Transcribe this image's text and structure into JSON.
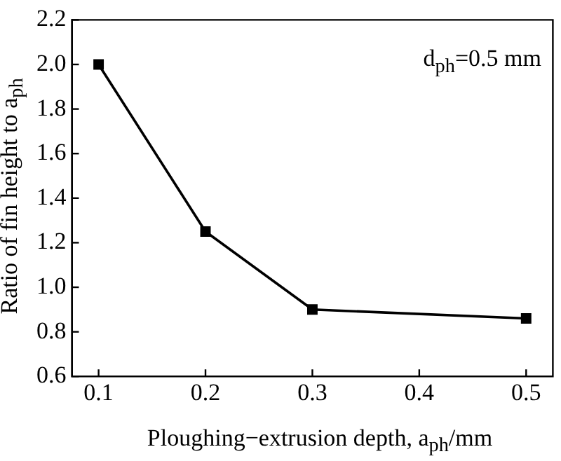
{
  "chart_data": {
    "type": "line",
    "xlabel": "Ploughing−extrusion depth, a$_{ph}$/mm",
    "ylabel": "Ratio of fin height to a$_{ph}$",
    "annotations": [
      "d$_{ph}$=0.5 mm"
    ],
    "x": [
      0.1,
      0.2,
      0.3,
      0.5
    ],
    "series": [
      {
        "color": "#000000",
        "values": [
          2.0,
          1.25,
          0.9,
          0.86
        ]
      }
    ],
    "xlim": [
      0.075,
      0.525
    ],
    "xticks": [
      0.1,
      0.2,
      0.3,
      0.4,
      0.5
    ],
    "ylim": [
      0.6,
      2.2
    ],
    "yticks": [
      0.6,
      0.8,
      {
        "value": 1,
        "label": "1.0"
      },
      1.2,
      1.4,
      1.6,
      1.8,
      {
        "value": 2,
        "label": "2.0"
      },
      2.2
    ],
    "marker": "square",
    "line_style": "solid",
    "grid": false,
    "legend": false
  }
}
